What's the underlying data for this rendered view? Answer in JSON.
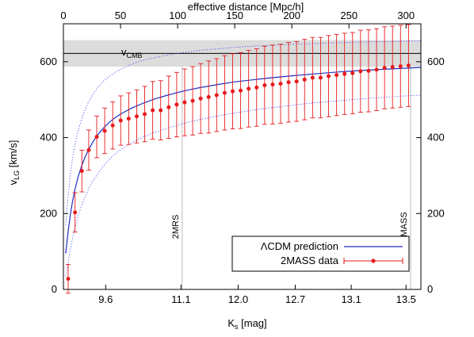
{
  "chart_data": {
    "type": "scatter",
    "title": "",
    "xlabel": "K_s [mag]",
    "x2label": "effective distance [Mpc/h]",
    "ylabel": "v_LG [km/s]",
    "grid": false,
    "legend_position": "bottom-right",
    "top_axis": {
      "ticks": [
        0,
        50,
        100,
        150,
        200,
        250,
        300
      ],
      "range": [
        0,
        313
      ]
    },
    "bottom_axis": {
      "tick_labels": [
        "9.6",
        "11.1",
        "12.0",
        "12.7",
        "13.1",
        "13.5"
      ],
      "tick_positions_top_scale": [
        37,
        103,
        153,
        203,
        252,
        300
      ]
    },
    "ylim": [
      0,
      700
    ],
    "yticks": [
      0,
      200,
      400,
      600
    ],
    "annotations": [
      {
        "text": "2MRS",
        "at": 104
      },
      {
        "text": "2MASS",
        "at": 304
      }
    ],
    "v_cmb": {
      "label": "v_CMB",
      "value": 622,
      "band": [
        587,
        657
      ]
    },
    "series": [
      {
        "name": "ΛCDM prediction",
        "kind": "line",
        "color": "#1f2fbf",
        "x": [
          2,
          4,
          6,
          8,
          10,
          13,
          16,
          19,
          22,
          26,
          30,
          35,
          40,
          45,
          50,
          60,
          70,
          80,
          90,
          100,
          110,
          120,
          135,
          150,
          165,
          180,
          200,
          220,
          240,
          260,
          280,
          300,
          313
        ],
        "y": [
          95,
          150,
          195,
          232,
          262,
          298,
          326,
          349,
          368,
          390,
          407,
          425,
          440,
          452,
          462,
          478,
          491,
          502,
          511,
          519,
          526,
          532,
          540,
          547,
          552,
          557,
          563,
          568,
          573,
          577,
          580,
          583,
          585
        ]
      },
      {
        "name": "ΛCDM prediction upper bound",
        "kind": "dotted",
        "color": "#3a4bf0",
        "x": [
          2,
          4,
          6,
          8,
          10,
          13,
          16,
          19,
          22,
          26,
          30,
          35,
          40,
          45,
          50,
          60,
          70,
          80,
          90,
          100,
          110,
          120,
          135,
          150,
          165,
          180,
          200,
          220,
          240,
          260,
          280,
          300,
          313
        ],
        "y": [
          170,
          245,
          300,
          345,
          380,
          420,
          450,
          474,
          494,
          515,
          532,
          548,
          561,
          571,
          580,
          594,
          604,
          611,
          617,
          622,
          626,
          630,
          634,
          638,
          641,
          643,
          646,
          648,
          650,
          652,
          653,
          654,
          655
        ]
      },
      {
        "name": "ΛCDM prediction lower bound",
        "kind": "dotted",
        "color": "#3a4bf0",
        "x": [
          2,
          4,
          6,
          8,
          10,
          13,
          16,
          19,
          22,
          26,
          30,
          35,
          40,
          45,
          50,
          60,
          70,
          80,
          90,
          100,
          110,
          120,
          135,
          150,
          165,
          180,
          200,
          220,
          240,
          260,
          280,
          300,
          313
        ],
        "y": [
          35,
          70,
          105,
          135,
          160,
          195,
          222,
          245,
          265,
          287,
          305,
          325,
          342,
          356,
          368,
          387,
          402,
          414,
          424,
          433,
          441,
          448,
          457,
          465,
          472,
          478,
          485,
          492,
          497,
          502,
          506,
          510,
          512
        ]
      },
      {
        "name": "2MASS data",
        "kind": "points",
        "color": "#e8191b",
        "x": [
          0,
          6,
          12,
          18,
          25,
          32,
          39,
          46,
          53,
          60,
          67,
          74,
          81,
          88,
          95,
          102,
          109,
          116,
          123,
          130,
          137,
          144,
          151,
          158,
          165,
          172,
          179,
          186,
          193,
          200,
          207,
          214,
          221,
          228,
          235,
          242,
          249,
          256,
          263,
          270,
          277,
          284,
          291,
          298
        ],
        "y": [
          28,
          203,
          312,
          367,
          402,
          418,
          432,
          445,
          450,
          456,
          462,
          472,
          472,
          480,
          487,
          493,
          497,
          503,
          507,
          512,
          518,
          522,
          524,
          529,
          532,
          538,
          540,
          542,
          546,
          548,
          553,
          558,
          558,
          562,
          565,
          568,
          570,
          575,
          576,
          579,
          584,
          586,
          588,
          590
        ],
        "err": [
          38,
          52,
          55,
          53,
          55,
          60,
          62,
          65,
          68,
          70,
          73,
          76,
          78,
          82,
          85,
          88,
          90,
          92,
          95,
          96,
          98,
          99,
          100,
          101,
          102,
          103,
          104,
          104,
          105,
          105,
          106,
          106,
          106,
          107,
          107,
          107,
          107,
          108,
          108,
          108,
          108,
          108,
          108,
          108
        ]
      }
    ]
  },
  "legend": {
    "line_label": "ΛCDM prediction",
    "points_label": "2MASS data"
  },
  "axes": {
    "x2label": "effective distance [Mpc/h]",
    "xlabel_main": "K",
    "xlabel_sub": "s",
    "xlabel_rest": " [mag]",
    "ylabel_main": "v",
    "ylabel_sub": "LG",
    "ylabel_rest": " [km/s]",
    "cmb_main": "v",
    "cmb_sub": "CMB"
  },
  "colors": {
    "model_line": "#1f2fbf",
    "bounds": "#3a4bf0",
    "data": "#e8191b",
    "band": "#dcdcdc"
  }
}
